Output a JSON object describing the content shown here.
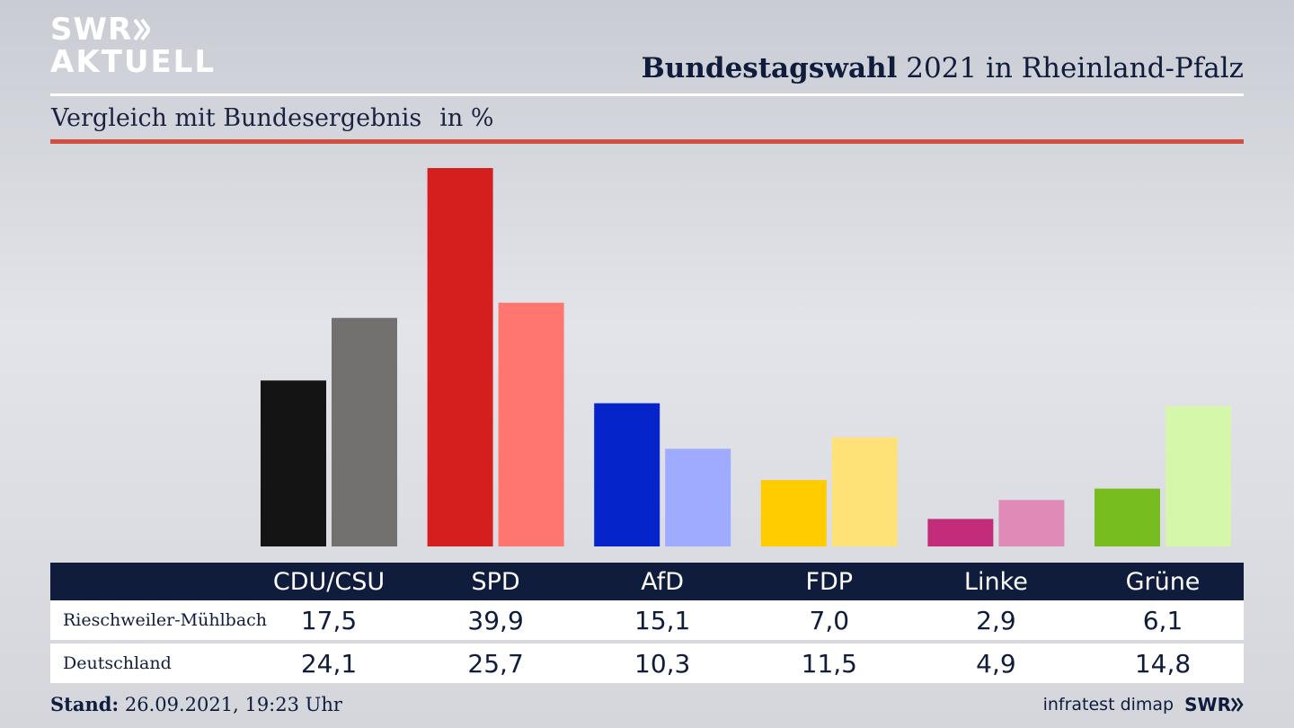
{
  "branding": {
    "logo_line1": "SWR",
    "logo_line2": "AKTUELL",
    "footer_logo": "SWR"
  },
  "header": {
    "title_bold": "Bundestagswahl",
    "title_rest": "2021 in Rheinland-Pfalz"
  },
  "subtitle": {
    "text": "Vergleich mit Bundesergebnis",
    "unit": "in %"
  },
  "chart_data": {
    "type": "bar",
    "categories": [
      "CDU/CSU",
      "SPD",
      "AfD",
      "FDP",
      "Linke",
      "Grüne"
    ],
    "series": [
      {
        "name": "Rieschweiler-Mühlbach",
        "values": [
          17.5,
          39.9,
          15.1,
          7.0,
          2.9,
          6.1
        ],
        "labels": [
          "17,5",
          "39,9",
          "15,1",
          "7,0",
          "2,9",
          "6,1"
        ]
      },
      {
        "name": "Deutschland",
        "values": [
          24.1,
          25.7,
          10.3,
          11.5,
          4.9,
          14.8
        ],
        "labels": [
          "24,1",
          "25,7",
          "10,3",
          "11,5",
          "4,9",
          "14,8"
        ]
      }
    ],
    "colors_primary": [
      "#141414",
      "#d51f1f",
      "#0524c9",
      "#ffcc00",
      "#c22c78",
      "#78bd1f"
    ],
    "colors_secondary": [
      "#727170",
      "#ff7570",
      "#9eabff",
      "#ffe277",
      "#e08ab8",
      "#d5f7a9"
    ],
    "ylim": [
      0,
      40
    ]
  },
  "footer": {
    "stand_label": "Stand:",
    "stand_value": "26.09.2021, 19:23 Uhr",
    "source": "infratest dimap"
  }
}
